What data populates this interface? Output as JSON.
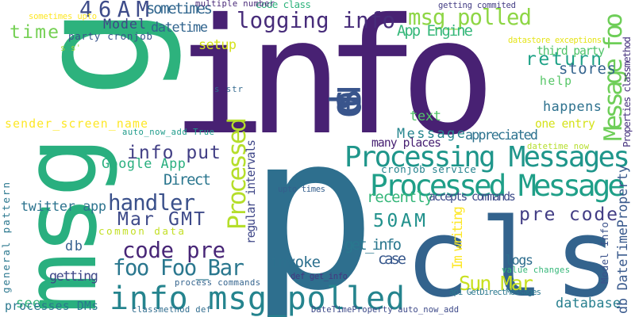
{
  "cloud": {
    "words": [
      {
        "text": "info",
        "color": "#482173"
      },
      {
        "text": "p",
        "color": "#2e6f8e"
      },
      {
        "text": "cls",
        "color": "#33638d"
      },
      {
        "text": "msg",
        "color": "#29af7f"
      },
      {
        "text": "g",
        "color": "#2db27d"
      },
      {
        "text": "info msg_polled",
        "color": "#25848e"
      },
      {
        "text": "Processing Messages",
        "color": "#1f968b"
      },
      {
        "text": "Processed Message",
        "color": "#1f9f88"
      },
      {
        "text": "logging info",
        "color": "#472c7a"
      },
      {
        "text": "msg_polled",
        "color": "#8ed645"
      },
      {
        "text": "Message foo",
        "color": "#6ece58"
      },
      {
        "text": "Processed",
        "color": "#b5de2b"
      },
      {
        "text": "46AM",
        "color": "#3e4c8a"
      },
      {
        "text": "handler",
        "color": "#3b518b"
      },
      {
        "text": "code pre",
        "color": "#482677"
      },
      {
        "text": "foo Foo_Bar",
        "color": "#2a778e"
      },
      {
        "text": "Mar GMT",
        "color": "#3e4a89"
      },
      {
        "text": "info put",
        "color": "#423f85"
      },
      {
        "text": "pre code",
        "color": "#433e85"
      },
      {
        "text": "50AM",
        "color": "#21918c"
      },
      {
        "text": "Sun Mar",
        "color": "#c8e020"
      },
      {
        "text": "return",
        "color": "#1fa287"
      },
      {
        "text": "time",
        "color": "#75d054"
      },
      {
        "text": "Model",
        "color": "#404688"
      },
      {
        "text": "datetime",
        "color": "#32658e"
      },
      {
        "text": "sometimes",
        "color": "#31668e"
      },
      {
        "text": "stores",
        "color": "#33638d"
      },
      {
        "text": "used",
        "color": "#39558c"
      },
      {
        "text": "setup",
        "color": "#d5e21a"
      },
      {
        "text": "App Engine",
        "color": "#35b779"
      },
      {
        "text": "Message",
        "color": "#25858e"
      },
      {
        "text": "appreciated",
        "color": "#2c728e"
      },
      {
        "text": "recently",
        "color": "#34b679"
      },
      {
        "text": "Google App",
        "color": "#29af7f"
      },
      {
        "text": "Direct",
        "color": "#2a768e"
      },
      {
        "text": "get_info",
        "color": "#2a778e"
      },
      {
        "text": "invoke",
        "color": "#2d708e"
      },
      {
        "text": "case",
        "color": "#38588c"
      },
      {
        "text": "getting",
        "color": "#3f4788"
      },
      {
        "text": "twitter app",
        "color": "#2c738e"
      },
      {
        "text": "db",
        "color": "#355f8d"
      },
      {
        "text": "database",
        "color": "#277f8e"
      },
      {
        "text": "logs",
        "color": "#2e6e8e"
      },
      {
        "text": "text",
        "color": "#52c569"
      },
      {
        "text": "happens",
        "color": "#2d718e"
      },
      {
        "text": "help",
        "color": "#56c667"
      },
      {
        "text": "Im writing",
        "color": "#fde725"
      },
      {
        "text": "seems",
        "color": "#30b57a"
      },
      {
        "text": "third party",
        "color": "#50c46a"
      },
      {
        "text": "sender_screen_name",
        "color": "#fde725"
      },
      {
        "text": "code class",
        "color": "#2eb37c"
      },
      {
        "text": "party cronjob",
        "color": "#39558c"
      },
      {
        "text": "one entry",
        "color": "#d5e21a"
      },
      {
        "text": "cronjob service",
        "color": "#26828e"
      },
      {
        "text": "accepts commands",
        "color": "#3e4c8a"
      },
      {
        "text": "many places",
        "color": "#482173"
      },
      {
        "text": "common data",
        "color": "#c2df23"
      },
      {
        "text": "regular intervals",
        "color": "#3f4788"
      },
      {
        "text": "Model Info",
        "color": "#3b528b"
      },
      {
        "text": "db DateTimeProperty",
        "color": "#38598c"
      },
      {
        "text": "Properties classmethod",
        "color": "#46327e"
      },
      {
        "text": "general pattern",
        "color": "#2a778e"
      },
      {
        "text": "processes DMs",
        "color": "#2a788e"
      },
      {
        "text": "multiple number",
        "color": "#482878"
      },
      {
        "text": "getting commited",
        "color": "#433d84"
      },
      {
        "text": "datastore exceptions",
        "color": "#e5e419"
      },
      {
        "text": "sometimes upto",
        "color": "#fde725"
      },
      {
        "text": "s s'",
        "color": "#9fda3a"
      },
      {
        "text": "s str",
        "color": "#31688e"
      },
      {
        "text": "auto_now_add True",
        "color": "#1e9b8a"
      },
      {
        "text": "datetime now",
        "color": "#b5de2b"
      },
      {
        "text": "upto times",
        "color": "#355f8d"
      },
      {
        "text": "process commands",
        "color": "#33638d"
      },
      {
        "text": "def get_info",
        "color": "#453781"
      },
      {
        "text": "value changes",
        "color": "#35b779"
      },
      {
        "text": "api GetDirectMessages",
        "color": "#2a788e"
      },
      {
        "text": "classmethod def",
        "color": "#2f6c8e"
      },
      {
        "text": "DateTimeProperty auto_now_add",
        "color": "#3e4a89"
      }
    ]
  }
}
